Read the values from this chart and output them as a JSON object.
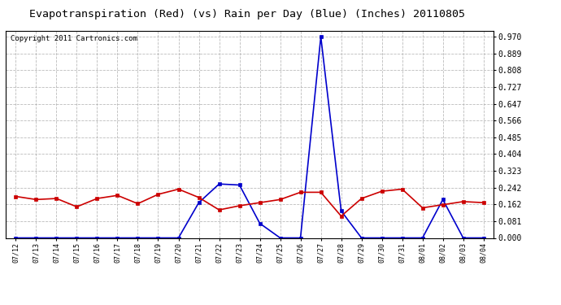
{
  "title": "Evapotranspiration (Red) (vs) Rain per Day (Blue) (Inches) 20110805",
  "copyright": "Copyright 2011 Cartronics.com",
  "dates": [
    "07/12",
    "07/13",
    "07/14",
    "07/15",
    "07/16",
    "07/17",
    "07/18",
    "07/19",
    "07/20",
    "07/21",
    "07/22",
    "07/23",
    "07/24",
    "07/25",
    "07/26",
    "07/27",
    "07/28",
    "07/29",
    "07/30",
    "07/31",
    "08/01",
    "08/02",
    "08/03",
    "08/04"
  ],
  "et_red": [
    0.2,
    0.185,
    0.19,
    0.15,
    0.19,
    0.205,
    0.165,
    0.21,
    0.235,
    0.195,
    0.135,
    0.155,
    0.17,
    0.185,
    0.22,
    0.22,
    0.105,
    0.19,
    0.225,
    0.235,
    0.145,
    0.16,
    0.175,
    0.17
  ],
  "rain_blue": [
    0.0,
    0.0,
    0.0,
    0.0,
    0.0,
    0.0,
    0.0,
    0.0,
    0.0,
    0.17,
    0.26,
    0.255,
    0.07,
    0.0,
    0.0,
    0.97,
    0.13,
    0.0,
    0.0,
    0.0,
    0.0,
    0.185,
    0.0,
    0.0
  ],
  "ylim": [
    0.0,
    1.0
  ],
  "yticks": [
    0.0,
    0.081,
    0.162,
    0.242,
    0.323,
    0.404,
    0.485,
    0.566,
    0.647,
    0.727,
    0.808,
    0.889,
    0.97
  ],
  "red_color": "#cc0000",
  "blue_color": "#0000cc",
  "bg_color": "#ffffff",
  "plot_bg": "#ffffff",
  "grid_color": "#aaaaaa",
  "title_fontsize": 9.5,
  "copyright_fontsize": 6.5,
  "tick_fontsize": 7,
  "xtick_fontsize": 6
}
